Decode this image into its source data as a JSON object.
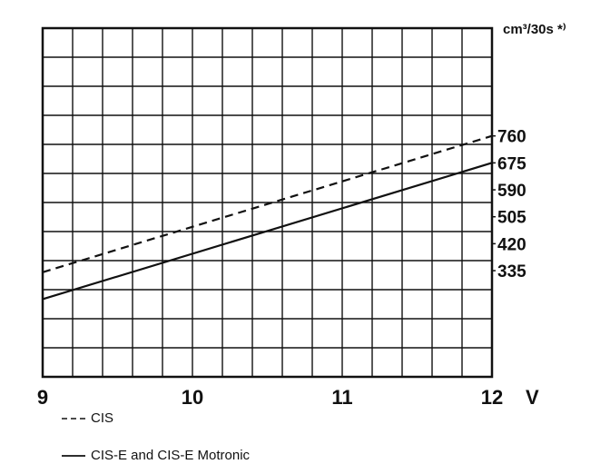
{
  "chart_data": {
    "type": "line",
    "x_unit": "V",
    "y_unit": "cm³/30s *⁾",
    "x_ticks": [
      "9",
      "10",
      "11",
      "12"
    ],
    "y_ticks": [
      "760",
      "675",
      "590",
      "505",
      "420",
      "335"
    ],
    "xlim": [
      9,
      12
    ],
    "ylim": [
      0,
      1100
    ],
    "grid": true,
    "series": [
      {
        "name": "CIS",
        "style": "dashed",
        "x": [
          9,
          12
        ],
        "y": [
          330,
          760
        ]
      },
      {
        "name": "CIS-E and CIS-E Motronic",
        "style": "solid",
        "x": [
          9,
          12
        ],
        "y": [
          245,
          675
        ]
      }
    ]
  },
  "legend": [
    {
      "symbol": "--",
      "label": "CIS"
    },
    {
      "symbol": "—",
      "label": "CIS-E and CIS-E Motronic"
    }
  ],
  "colors": {
    "line": "#111111",
    "grid": "#111111",
    "background": "#ffffff"
  }
}
